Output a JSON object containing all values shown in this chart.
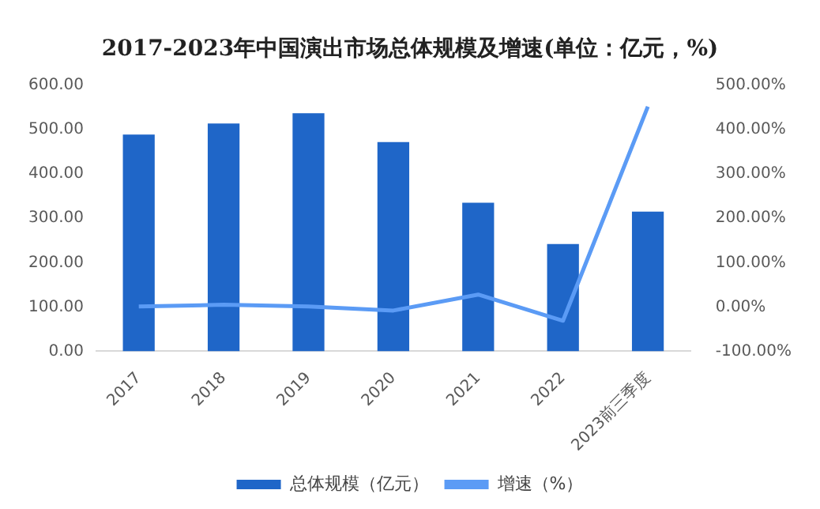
{
  "chart_data": {
    "type": "bar",
    "title": "2017-2023年中国演出市场总体规模及增速(单位：亿元，%)",
    "categories": [
      "2017",
      "2018",
      "2019",
      "2020",
      "2021",
      "2022",
      "2023前三季度"
    ],
    "series": [
      {
        "name": "总体规模（亿元）",
        "color": "#1f66c8",
        "values": [
          489,
          514,
          537,
          472,
          335,
          242,
          315
        ]
      },
      {
        "name": "增速（%）",
        "type": "line",
        "axis": "y2",
        "color": "#5b9bf5",
        "values": [
          1,
          5,
          1,
          -8,
          28,
          -31,
          452
        ]
      }
    ],
    "ylim": [
      0,
      600
    ],
    "yticks": [
      {
        "value": 0,
        "label": "0.00"
      },
      {
        "value": 100,
        "label": "100.00"
      },
      {
        "value": 200,
        "label": "200.00"
      },
      {
        "value": 300,
        "label": "300.00"
      },
      {
        "value": 400,
        "label": "400.00"
      },
      {
        "value": 500,
        "label": "500.00"
      },
      {
        "value": 600,
        "label": "600.00"
      }
    ],
    "y2lim": [
      -100,
      500
    ],
    "y2ticks": [
      {
        "value": -100,
        "label": "-100.00%"
      },
      {
        "value": 0,
        "label": "0.00%"
      },
      {
        "value": 100,
        "label": "100.00%"
      },
      {
        "value": 200,
        "label": "200.00%"
      },
      {
        "value": 300,
        "label": "300.00%"
      },
      {
        "value": 400,
        "label": "400.00%"
      },
      {
        "value": 500,
        "label": "500.00%"
      }
    ],
    "grid": false,
    "legend": "bottom",
    "marker": "none"
  }
}
